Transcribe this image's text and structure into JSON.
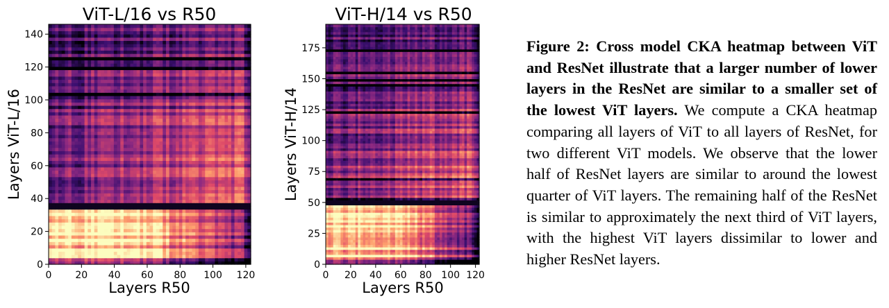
{
  "figure": {
    "caption_label": "Figure 2:",
    "caption_bold": "Cross model CKA heatmap between ViT and ResNet illustrate that a larger number of lower layers in the ResNet are similar to a smaller set of the lowest ViT layers.",
    "caption_body": "We compute a CKA heatmap comparing all layers of ViT to all layers of ResNet, for two different ViT models. We observe that the lower half of ResNet layers are similar to around the lowest quarter of ViT layers. The remaining half of the ResNet is similar to approximately the next third of ViT layers, with the highest ViT layers dissimilar to lower and higher ResNet layers."
  },
  "colors": {
    "cmap": [
      "#000004",
      "#3b0f70",
      "#8c2981",
      "#de4968",
      "#fe9f6d",
      "#fcfdbf"
    ]
  },
  "chart_data": [
    {
      "type": "heatmap",
      "title": "ViT-L/16 vs R50",
      "xlabel": "Layers R50",
      "ylabel": "Layers ViT-L/16",
      "xlim": [
        0,
        123
      ],
      "ylim": [
        0,
        146
      ],
      "xticks": [
        0,
        20,
        40,
        60,
        80,
        100,
        120
      ],
      "yticks": [
        0,
        20,
        40,
        60,
        80,
        100,
        120,
        140
      ],
      "colormap": "magma",
      "value_range": [
        0,
        1
      ],
      "description_values": {
        "low_vit_low_resnet": 0.85,
        "mid_vit_high_resnet": 0.75,
        "high_vit": 0.3,
        "boundary_row": 36
      }
    },
    {
      "type": "heatmap",
      "title": "ViT-H/14 vs R50",
      "xlabel": "Layers R50",
      "ylabel": "Layers ViT-H/14",
      "xlim": [
        0,
        123
      ],
      "ylim": [
        0,
        194
      ],
      "xticks": [
        0,
        20,
        40,
        60,
        80,
        100,
        120
      ],
      "yticks": [
        0,
        25,
        50,
        75,
        100,
        125,
        150,
        175
      ],
      "colormap": "magma",
      "value_range": [
        0,
        1
      ],
      "description_values": {
        "low_vit_low_resnet": 0.85,
        "mid_vit_high_resnet": 0.7,
        "high_vit": 0.3,
        "boundary_row": 50
      }
    }
  ]
}
